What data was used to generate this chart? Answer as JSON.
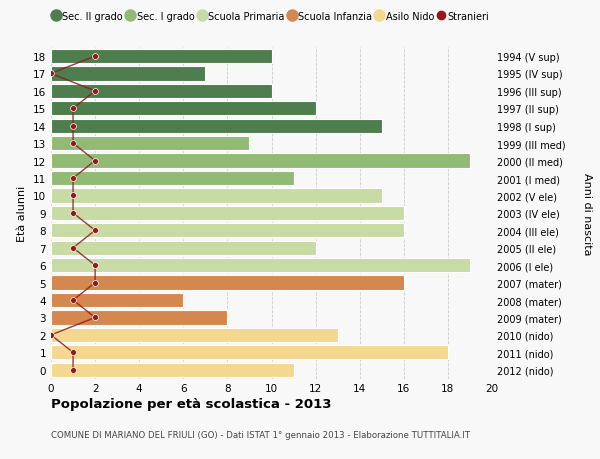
{
  "ages": [
    0,
    1,
    2,
    3,
    4,
    5,
    6,
    7,
    8,
    9,
    10,
    11,
    12,
    13,
    14,
    15,
    16,
    17,
    18
  ],
  "right_labels": [
    "2012 (nido)",
    "2011 (nido)",
    "2010 (nido)",
    "2009 (mater)",
    "2008 (mater)",
    "2007 (mater)",
    "2006 (I ele)",
    "2005 (II ele)",
    "2004 (III ele)",
    "2003 (IV ele)",
    "2002 (V ele)",
    "2001 (I med)",
    "2000 (II med)",
    "1999 (III med)",
    "1998 (I sup)",
    "1997 (II sup)",
    "1996 (III sup)",
    "1995 (IV sup)",
    "1994 (V sup)"
  ],
  "bar_values": [
    11,
    18,
    13,
    8,
    6,
    16,
    19,
    12,
    16,
    16,
    15,
    11,
    19,
    9,
    15,
    12,
    10,
    7,
    10
  ],
  "stranieri_values": [
    1,
    1,
    0,
    2,
    1,
    2,
    2,
    1,
    2,
    1,
    1,
    1,
    2,
    1,
    1,
    1,
    2,
    0,
    2
  ],
  "bar_colors": [
    "#f5d890",
    "#f5d890",
    "#f5d890",
    "#d4874e",
    "#d4874e",
    "#d4874e",
    "#c9dba5",
    "#c9dba5",
    "#c9dba5",
    "#c9dba5",
    "#c9dba5",
    "#91bb74",
    "#91bb74",
    "#91bb74",
    "#4e7d4e",
    "#4e7d4e",
    "#4e7d4e",
    "#4e7d4e",
    "#4e7d4e"
  ],
  "legend_labels": [
    "Sec. II grado",
    "Sec. I grado",
    "Scuola Primaria",
    "Scuola Infanzia",
    "Asilo Nido",
    "Stranieri"
  ],
  "legend_colors": [
    "#4e7d4e",
    "#91bb74",
    "#c9dba5",
    "#d4874e",
    "#f5d890",
    "#9b1515"
  ],
  "ylabel_left": "Età alunni",
  "ylabel_right": "Anni di nascita",
  "title": "Popolazione per età scolastica - 2013",
  "subtitle": "COMUNE DI MARIANO DEL FRIULI (GO) - Dati ISTAT 1° gennaio 2013 - Elaborazione TUTTITALIA.IT",
  "xlim": [
    0,
    20
  ],
  "xticks": [
    0,
    2,
    4,
    6,
    8,
    10,
    12,
    14,
    16,
    18,
    20
  ],
  "background_color": "#f8f8f8",
  "grid_color": "#cccccc",
  "stranieri_line_color": "#8b1a1a",
  "stranieri_dot_color": "#9b1515"
}
